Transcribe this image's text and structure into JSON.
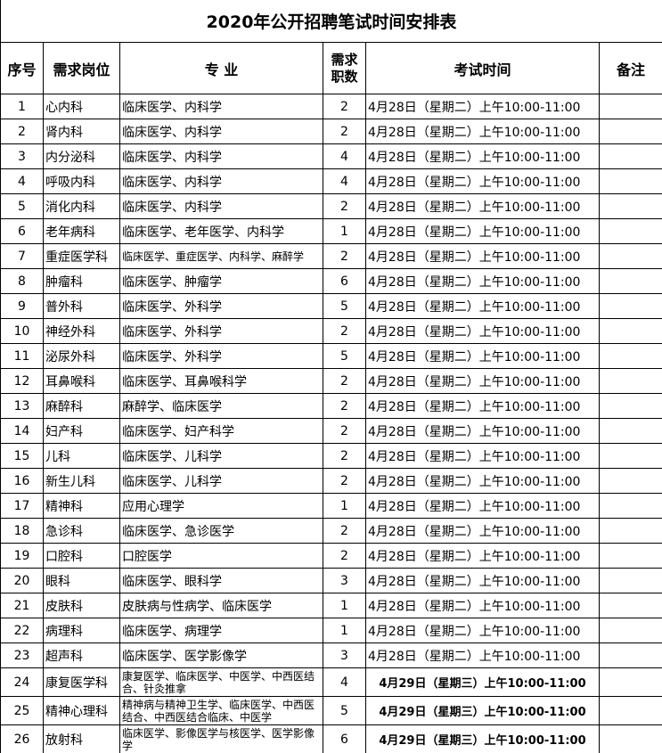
{
  "title": "2020年公开招聘笔试时间安排表",
  "headers": {
    "no": "序号",
    "position": "需求岗位",
    "major": "专 业",
    "count": "需求职数",
    "time": "考试时间",
    "note": "备注"
  },
  "rows": [
    {
      "no": "1",
      "position": "心内科",
      "major": "临床医学、内科学",
      "count": "2",
      "time": "4月28日（星期二）上午10:00-11:00"
    },
    {
      "no": "2",
      "position": "肾内科",
      "major": "临床医学、内科学",
      "count": "2",
      "time": "4月28日（星期二）上午10:00-11:00"
    },
    {
      "no": "3",
      "position": "内分泌科",
      "major": "临床医学、内科学",
      "count": "4",
      "time": "4月28日（星期二）上午10:00-11:00"
    },
    {
      "no": "4",
      "position": "呼吸内科",
      "major": "临床医学、内科学",
      "count": "4",
      "time": "4月28日（星期二）上午10:00-11:00"
    },
    {
      "no": "5",
      "position": "消化内科",
      "major": "临床医学、内科学",
      "count": "2",
      "time": "4月28日（星期二）上午10:00-11:00"
    },
    {
      "no": "6",
      "position": "老年病科",
      "major": "临床医学、老年医学、内科学",
      "count": "1",
      "time": "4月28日（星期二）上午10:00-11:00"
    },
    {
      "no": "7",
      "position": "重症医学科",
      "major": "临床医学、重症医学、内科学、麻醉学",
      "count": "2",
      "time": "4月28日（星期二）上午10:00-11:00",
      "small": true
    },
    {
      "no": "8",
      "position": "肿瘤科",
      "major": "临床医学、肿瘤学",
      "count": "6",
      "time": "4月28日（星期二）上午10:00-11:00"
    },
    {
      "no": "9",
      "position": "普外科",
      "major": "临床医学、外科学",
      "count": "5",
      "time": "4月28日（星期二）上午10:00-11:00"
    },
    {
      "no": "10",
      "position": "神经外科",
      "major": "临床医学、外科学",
      "count": "2",
      "time": "4月28日（星期二）上午10:00-11:00"
    },
    {
      "no": "11",
      "position": "泌尿外科",
      "major": "临床医学、外科学",
      "count": "5",
      "time": "4月28日（星期二）上午10:00-11:00"
    },
    {
      "no": "12",
      "position": "耳鼻喉科",
      "major": "临床医学、耳鼻喉科学",
      "count": "2",
      "time": "4月28日（星期二）上午10:00-11:00"
    },
    {
      "no": "13",
      "position": "麻醉科",
      "major": "麻醉学、临床医学",
      "count": "2",
      "time": "4月28日（星期二）上午10:00-11:00"
    },
    {
      "no": "14",
      "position": "妇产科",
      "major": "临床医学、妇产科学",
      "count": "2",
      "time": "4月28日（星期二）上午10:00-11:00"
    },
    {
      "no": "15",
      "position": "儿科",
      "major": "临床医学、儿科学",
      "count": "2",
      "time": "4月28日（星期二）上午10:00-11:00"
    },
    {
      "no": "16",
      "position": "新生儿科",
      "major": "临床医学、儿科学",
      "count": "2",
      "time": "4月28日（星期二）上午10:00-11:00"
    },
    {
      "no": "17",
      "position": "精神科",
      "major": "应用心理学",
      "count": "1",
      "time": "4月28日（星期二）上午10:00-11:00"
    },
    {
      "no": "18",
      "position": "急诊科",
      "major": "临床医学、急诊医学",
      "count": "2",
      "time": "4月28日（星期二）上午10:00-11:00"
    },
    {
      "no": "19",
      "position": "口腔科",
      "major": "口腔医学",
      "count": "2",
      "time": "4月28日（星期二）上午10:00-11:00"
    },
    {
      "no": "20",
      "position": "眼科",
      "major": "临床医学、眼科学",
      "count": "3",
      "time": "4月28日（星期二）上午10:00-11:00"
    },
    {
      "no": "21",
      "position": "皮肤科",
      "major": "皮肤病与性病学、临床医学",
      "count": "1",
      "time": "4月28日（星期二）上午10:00-11:00"
    },
    {
      "no": "22",
      "position": "病理科",
      "major": "临床医学、病理学",
      "count": "1",
      "time": "4月28日（星期二）上午10:00-11:00"
    },
    {
      "no": "23",
      "position": "超声科",
      "major": "临床医学、医学影像学",
      "count": "3",
      "time": "4月28日（星期二）上午10:00-11:00"
    },
    {
      "no": "24",
      "position": "康复医学科",
      "major": "康复医学、临床医学、中医学、中西医结合、针灸推拿",
      "count": "4",
      "time": "4月29日（星期三）上午10:00-11:00",
      "tall": true
    },
    {
      "no": "25",
      "position": "精神心理科",
      "major": "精神病与精神卫生学、临床医学、中西医结合、中西医结合临床、中医学",
      "count": "5",
      "time": "4月29日（星期三）上午10:00-11:00",
      "tall": true
    },
    {
      "no": "26",
      "position": "放射科",
      "major": "临床医学、影像医学与核医学、医学影像学",
      "count": "6",
      "time": "4月29日（星期三）上午10:00-11:00",
      "tall": true
    }
  ]
}
